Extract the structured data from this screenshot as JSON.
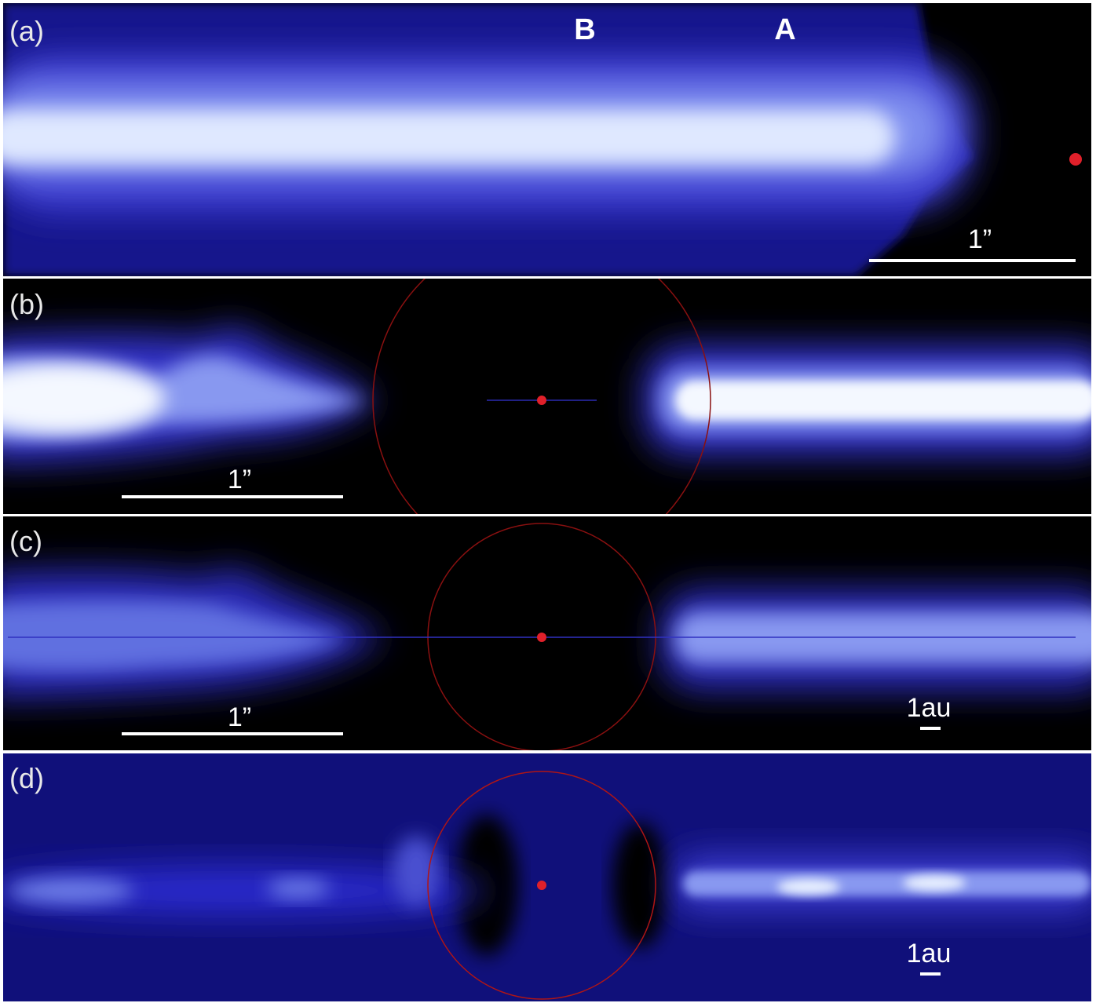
{
  "panels": [
    {
      "label": "(a)",
      "annotations": [
        "B",
        "A"
      ],
      "scale_label": "1”"
    },
    {
      "label": "(b)",
      "scale_label": "1”"
    },
    {
      "label": "(c)",
      "scale_label": "1”",
      "au_label": "1au"
    },
    {
      "label": "(d)",
      "au_label": "1au"
    }
  ]
}
